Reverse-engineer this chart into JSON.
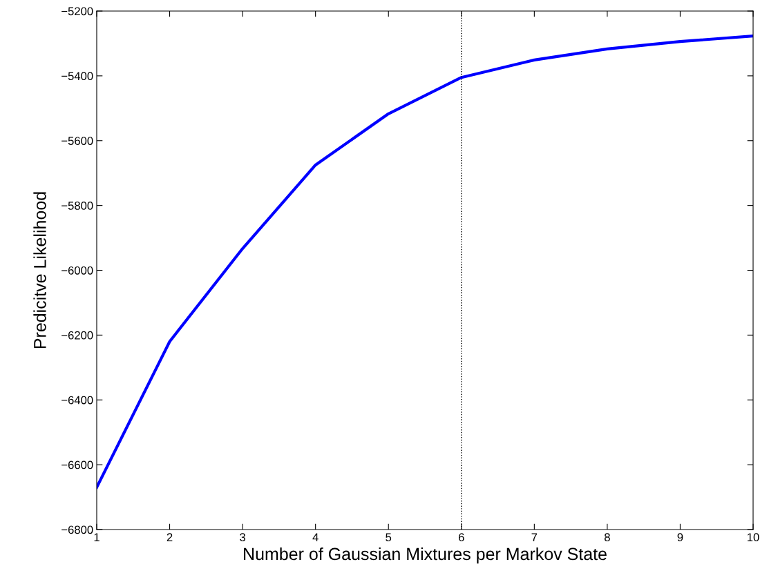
{
  "chart_data": {
    "type": "line",
    "xlabel": "Number of Gaussian Mixtures per Markov State",
    "ylabel": "Predicitve Likelihood",
    "x": [
      1,
      2,
      3,
      4,
      5,
      6,
      7,
      8,
      9,
      10
    ],
    "series": [
      {
        "color": "#0000ff",
        "values": [
          -6670,
          -6220,
          -5933,
          -5675,
          -5517,
          -5405,
          -5351,
          -5317,
          -5294,
          -5277
        ]
      }
    ],
    "xlim": [
      1,
      10
    ],
    "xticks": [
      1,
      2,
      3,
      4,
      5,
      6,
      7,
      8,
      9,
      10
    ],
    "ylim": [
      -6800,
      -5200
    ],
    "yticks": [
      -6800,
      -6600,
      -6400,
      -6200,
      -6000,
      -5800,
      -5600,
      -5400,
      -5200
    ],
    "ref_lines": [
      {
        "axis": "x",
        "value": 6,
        "color": "#000000",
        "line_style": "dotted"
      }
    ],
    "grid": false,
    "legend": false,
    "marker": "none",
    "line_style": "solid"
  }
}
